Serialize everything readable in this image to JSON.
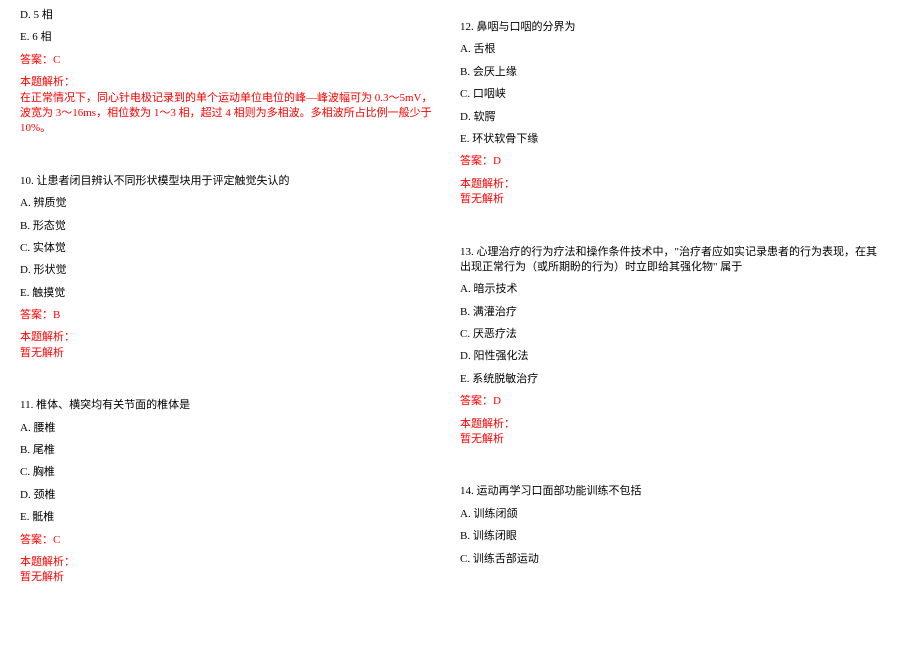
{
  "colors": {
    "text": "#000000",
    "accent": "#ff0000",
    "background": "#ffffff"
  },
  "typography": {
    "font_family": "SimSun",
    "font_size_pt": 11
  },
  "left": {
    "q9": {
      "opts": {
        "d": "D. 5 相",
        "e": "E. 6 相"
      },
      "ans": "答案：C",
      "exp_label": "本题解析：",
      "exp_body": "在正常情况下，同心针电极记录到的单个运动单位电位的峰—峰波幅可为 0.3～5mV，波宽为 3～16ms，相位数为 1～3 相，超过 4 相则为多相波。多相波所占比例一般少于 10%。"
    },
    "q10": {
      "stem": "10. 让患者闭目辨认不同形状模型块用于评定触觉失认的",
      "opts": {
        "a": "A. 辨质觉",
        "b": "B. 形态觉",
        "c": "C. 实体觉",
        "d": "D. 形状觉",
        "e": "E. 触摸觉"
      },
      "ans": "答案：B",
      "exp_label": "本题解析：",
      "exp_body": "暂无解析"
    },
    "q11": {
      "stem": "11. 椎体、横突均有关节面的椎体是",
      "opts": {
        "a": "A. 腰椎",
        "b": "B. 尾椎",
        "c": "C. 胸椎",
        "d": "D. 颈椎",
        "e": "E. 骶椎"
      },
      "ans": "答案：C",
      "exp_label": "本题解析：",
      "exp_body": "暂无解析"
    }
  },
  "right": {
    "q12": {
      "stem": "12. 鼻咽与口咽的分界为",
      "opts": {
        "a": "A. 舌根",
        "b": "B. 会厌上缘",
        "c": "C. 口咽峡",
        "d": "D. 软腭",
        "e": "E. 环状软骨下缘"
      },
      "ans": "答案：D",
      "exp_label": "本题解析：",
      "exp_body": "暂无解析"
    },
    "q13": {
      "stem": "13. 心理治疗的行为疗法和操作条件技术中，\"治疗者应如实记录患者的行为表现，在其出现正常行为（或所期盼的行为）时立即给其强化物\" 属于",
      "opts": {
        "a": "A. 暗示技术",
        "b": "B. 满灌治疗",
        "c": "C. 厌恶疗法",
        "d": "D. 阳性强化法",
        "e": "E. 系统脱敏治疗"
      },
      "ans": "答案：D",
      "exp_label": "本题解析：",
      "exp_body": "暂无解析"
    },
    "q14": {
      "stem": "14. 运动再学习口面部功能训练不包括",
      "opts": {
        "a": "A. 训练闭颌",
        "b": "B. 训练闭眼",
        "c": "C. 训练舌部运动"
      }
    }
  }
}
